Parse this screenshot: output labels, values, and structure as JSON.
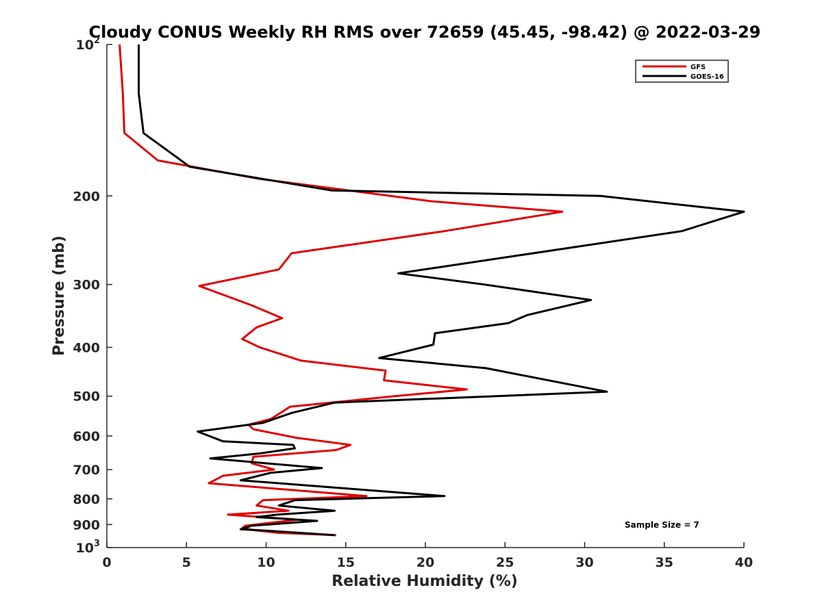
{
  "chart_data": {
    "type": "line",
    "title": "Cloudy CONUS Weekly RH RMS over 72659 (45.45, -98.42) @ 2022-03-29",
    "xlabel": "Relative Humidity (%)",
    "ylabel": "Pressure (mb)",
    "xlim": [
      0,
      40
    ],
    "ylim": [
      100,
      1000
    ],
    "y_scale": "log",
    "y_reversed": true,
    "x_ticks": [
      "0",
      "5",
      "10",
      "15",
      "20",
      "25",
      "30",
      "35",
      "40"
    ],
    "x_tick_values": [
      0,
      5,
      10,
      15,
      20,
      25,
      30,
      35,
      40
    ],
    "y_ticks": [
      {
        "value": 100,
        "base": "10",
        "exp": "2"
      },
      {
        "value": 200,
        "label": "200"
      },
      {
        "value": 300,
        "label": "300"
      },
      {
        "value": 400,
        "label": "400"
      },
      {
        "value": 500,
        "label": "500"
      },
      {
        "value": 600,
        "label": "600"
      },
      {
        "value": 700,
        "label": "700"
      },
      {
        "value": 800,
        "label": "800"
      },
      {
        "value": 900,
        "label": "900"
      },
      {
        "value": 1000,
        "base": "10",
        "exp": "3"
      }
    ],
    "legend_position": "top-right",
    "grid": false,
    "annotation": "Sample Size = 7",
    "series": [
      {
        "name": "GFS",
        "color": "#e00000",
        "points": [
          [
            0.8,
            100
          ],
          [
            1.0,
            125
          ],
          [
            1.1,
            150
          ],
          [
            3.2,
            170
          ],
          [
            9.6,
            185
          ],
          [
            20.4,
            205
          ],
          [
            28.6,
            215
          ],
          [
            21.2,
            235
          ],
          [
            11.6,
            260
          ],
          [
            10.8,
            280
          ],
          [
            5.8,
            302
          ],
          [
            9.1,
            330
          ],
          [
            11.0,
            350
          ],
          [
            9.4,
            365
          ],
          [
            8.5,
            385
          ],
          [
            9.6,
            400
          ],
          [
            12.2,
            425
          ],
          [
            17.5,
            445
          ],
          [
            17.4,
            465
          ],
          [
            22.6,
            485
          ],
          [
            18.1,
            500
          ],
          [
            11.5,
            525
          ],
          [
            10.3,
            555
          ],
          [
            8.9,
            570
          ],
          [
            9.2,
            582
          ],
          [
            11.9,
            605
          ],
          [
            15.3,
            625
          ],
          [
            14.4,
            640
          ],
          [
            9.2,
            660
          ],
          [
            9.1,
            680
          ],
          [
            10.5,
            700
          ],
          [
            7.3,
            720
          ],
          [
            6.4,
            745
          ],
          [
            16.3,
            790
          ],
          [
            9.8,
            805
          ],
          [
            9.4,
            825
          ],
          [
            11.4,
            845
          ],
          [
            7.6,
            860
          ],
          [
            12.0,
            880
          ],
          [
            8.7,
            905
          ],
          [
            8.5,
            915
          ],
          [
            9.4,
            925
          ],
          [
            10.8,
            935
          ],
          [
            14.4,
            945
          ]
        ]
      },
      {
        "name": "GOES-16",
        "color": "#000000",
        "points": [
          [
            2.0,
            100
          ],
          [
            2.0,
            125
          ],
          [
            2.3,
            150
          ],
          [
            5.2,
            175
          ],
          [
            14.1,
            195
          ],
          [
            31.0,
            200
          ],
          [
            40.0,
            215
          ],
          [
            36.1,
            235
          ],
          [
            18.3,
            285
          ],
          [
            23.7,
            300
          ],
          [
            30.4,
            322
          ],
          [
            26.4,
            345
          ],
          [
            25.2,
            358
          ],
          [
            20.6,
            375
          ],
          [
            20.5,
            395
          ],
          [
            17.1,
            420
          ],
          [
            23.8,
            440
          ],
          [
            31.4,
            490
          ],
          [
            14.3,
            515
          ],
          [
            11.6,
            540
          ],
          [
            9.8,
            565
          ],
          [
            5.7,
            588
          ],
          [
            7.3,
            615
          ],
          [
            11.7,
            625
          ],
          [
            11.8,
            635
          ],
          [
            9.6,
            650
          ],
          [
            6.5,
            665
          ],
          [
            13.5,
            695
          ],
          [
            10.3,
            710
          ],
          [
            8.4,
            735
          ],
          [
            21.2,
            790
          ],
          [
            11.8,
            805
          ],
          [
            10.8,
            825
          ],
          [
            14.3,
            845
          ],
          [
            10.7,
            860
          ],
          [
            9.4,
            870
          ],
          [
            13.2,
            885
          ],
          [
            9.1,
            905
          ],
          [
            8.4,
            920
          ],
          [
            9.9,
            925
          ],
          [
            14.3,
            945
          ]
        ]
      }
    ]
  }
}
